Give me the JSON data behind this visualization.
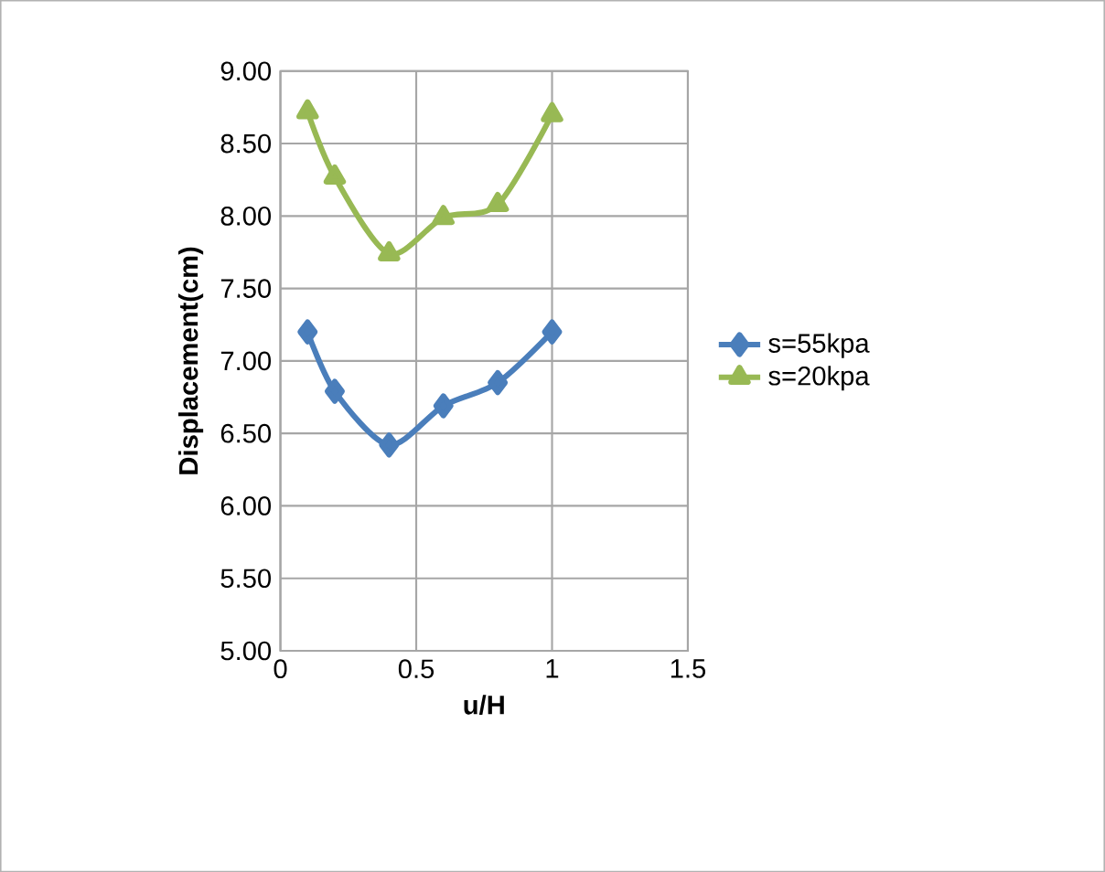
{
  "chart_data": {
    "type": "line",
    "xlabel": "u/H",
    "ylabel": "Displacement(cm)",
    "xlim": [
      0,
      1.5
    ],
    "xticks": [
      0,
      0.5,
      1,
      1.5
    ],
    "ylim": [
      5,
      9
    ],
    "yticks": [
      {
        "value": 5,
        "label": "5.00"
      },
      {
        "value": 5.5,
        "label": "5.50"
      },
      {
        "value": 6,
        "label": "6.00"
      },
      {
        "value": 6.5,
        "label": "6.50"
      },
      {
        "value": 7,
        "label": "7.00"
      },
      {
        "value": 7.5,
        "label": "7.50"
      },
      {
        "value": 8,
        "label": "8.00"
      },
      {
        "value": 8.5,
        "label": "8.50"
      },
      {
        "value": 9,
        "label": "9.00"
      }
    ],
    "grid": true,
    "legend": "right",
    "series": [
      {
        "name": "s=55kpa",
        "color": "#4a7ebb",
        "marker": "diamond",
        "x": [
          0.1,
          0.2,
          0.4,
          0.6,
          0.8,
          1.0
        ],
        "values": [
          7.2,
          6.79,
          6.42,
          6.69,
          6.85,
          7.2
        ]
      },
      {
        "name": "s=20kpa",
        "color": "#98b954",
        "marker": "triangle",
        "x": [
          0.1,
          0.2,
          0.4,
          0.6,
          0.8,
          1.0
        ],
        "values": [
          8.72,
          8.27,
          7.74,
          7.99,
          8.08,
          8.7
        ]
      }
    ]
  }
}
